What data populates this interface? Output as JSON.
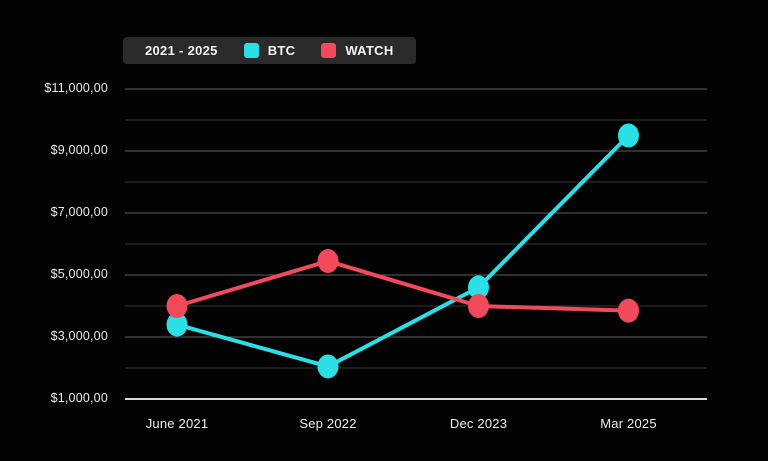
{
  "page": {
    "background_color": "#030303"
  },
  "legend": {
    "period_label": "2021 - 2025"
  },
  "chart_data": {
    "type": "line",
    "title": "",
    "xlabel": "",
    "ylabel": "",
    "categories": [
      "June 2021",
      "Sep 2022",
      "Dec 2023",
      "Mar 2025"
    ],
    "series": [
      {
        "name": "BTC",
        "color": "#2adfe6",
        "values": [
          3400,
          2050,
          4600,
          9500
        ]
      },
      {
        "name": "WATCH",
        "color": "#f2495c",
        "values": [
          4000,
          5450,
          4000,
          3850
        ]
      }
    ],
    "ylim": [
      1000,
      11000
    ],
    "y_minor_step": 1000,
    "y_major_ticks": [
      11000,
      9000,
      7000,
      5000,
      3000,
      1000
    ],
    "y_tick_labels": [
      "$11,000,00",
      "$9,000,00",
      "$7,000,00",
      "$5,000,00",
      "$3,000,00",
      "$1,000,00"
    ],
    "grid": true,
    "legend_position": "top-left"
  },
  "style_colors": {
    "grid_major": "#5e5e5e",
    "grid_minor": "#353535",
    "baseline": "#d9d9d9",
    "legend_background": "#2a2a2a",
    "text": "#ececec"
  }
}
